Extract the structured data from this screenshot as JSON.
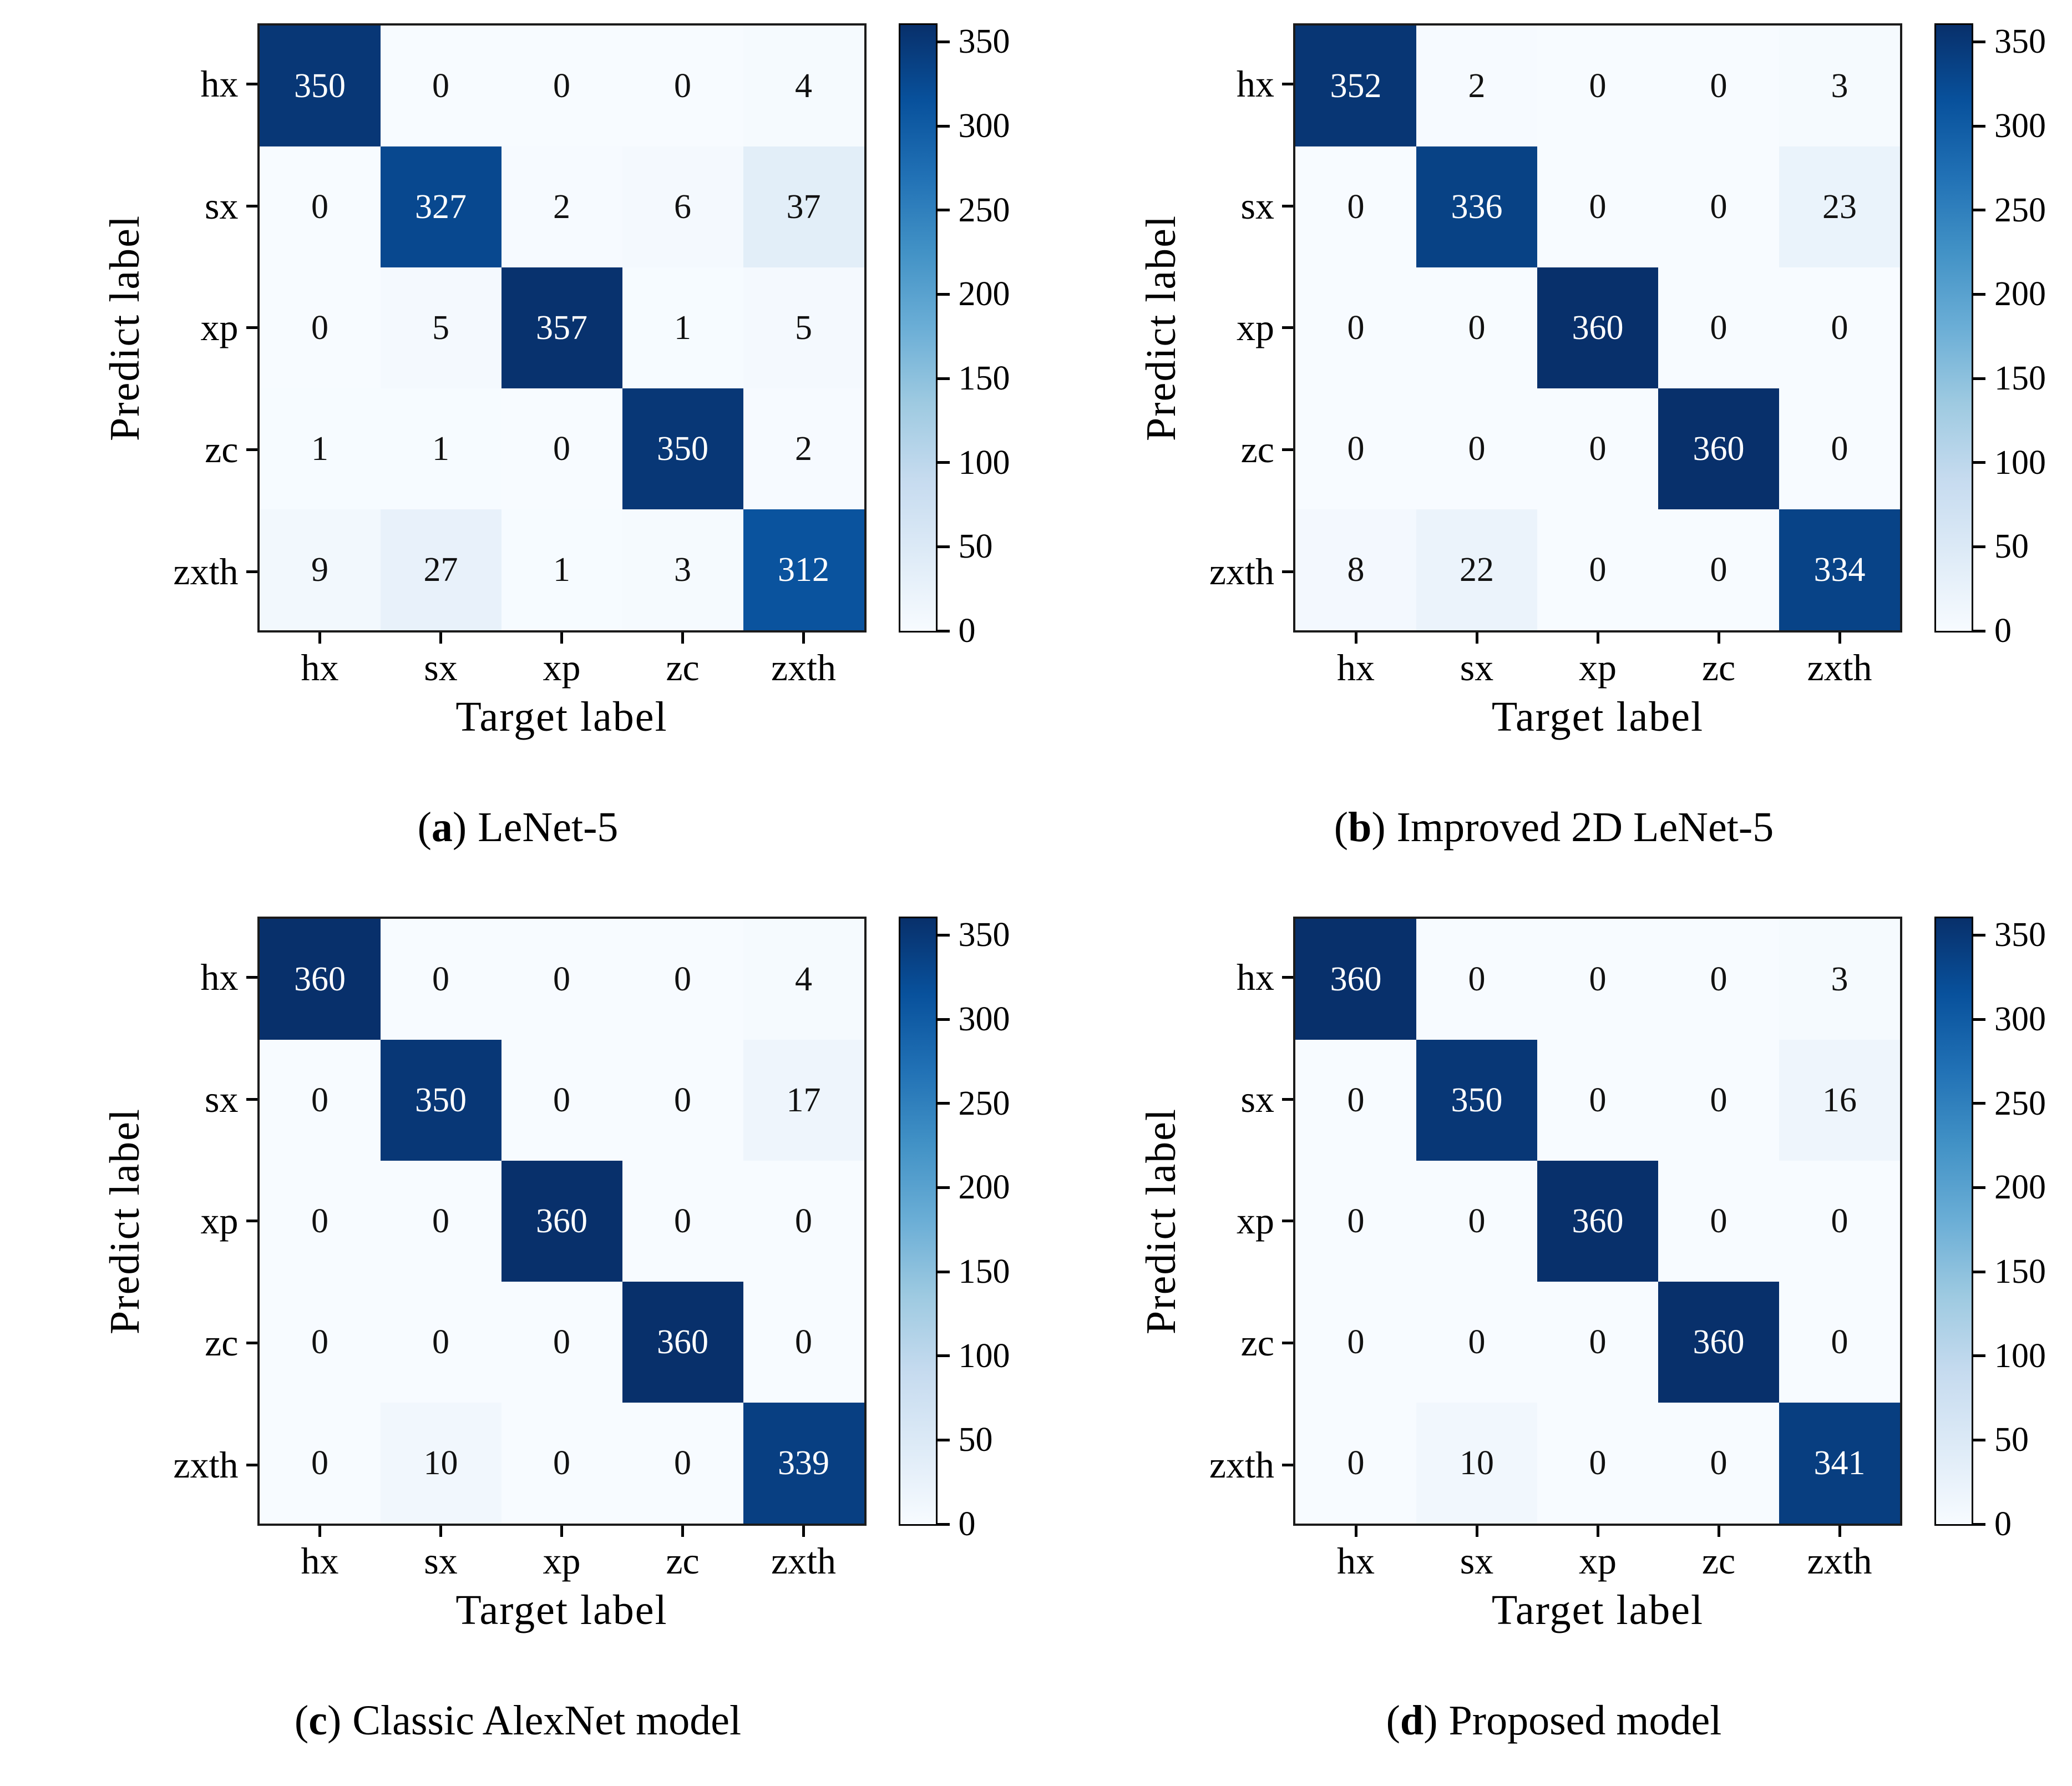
{
  "figure": {
    "background": "#ffffff"
  },
  "colors": {
    "colormap": "Blues",
    "cmap_stops": [
      [
        0.0,
        "#f7fbff"
      ],
      [
        0.125,
        "#deebf7"
      ],
      [
        0.25,
        "#c6dbef"
      ],
      [
        0.375,
        "#9ecae1"
      ],
      [
        0.5,
        "#6baed6"
      ],
      [
        0.625,
        "#4292c6"
      ],
      [
        0.75,
        "#2171b5"
      ],
      [
        0.875,
        "#08519c"
      ],
      [
        1.0,
        "#08306b"
      ]
    ],
    "cell_text_light": "#ffffff",
    "cell_text_dark": "#111111",
    "heatmap_border": "#1b1b1b",
    "axis_color": "#000000"
  },
  "caption_chrome": {
    "open": "(",
    "close": ")"
  },
  "chart_data": [
    {
      "type": "heatmap",
      "title": "(a) LeNet-5",
      "caption": {
        "letter": "a",
        "text": "LeNet-5"
      },
      "xlabel": "Target label",
      "ylabel": "Predict label",
      "x_categories": [
        "hx",
        "sx",
        "xp",
        "zc",
        "zxth"
      ],
      "y_categories": [
        "hx",
        "sx",
        "xp",
        "zc",
        "zxth"
      ],
      "matrix": [
        [
          350,
          0,
          0,
          0,
          4
        ],
        [
          0,
          327,
          2,
          6,
          37
        ],
        [
          0,
          5,
          357,
          1,
          5
        ],
        [
          1,
          1,
          0,
          350,
          2
        ],
        [
          9,
          27,
          1,
          3,
          312
        ]
      ],
      "vmin": 0,
      "vmax": 360,
      "colorbar_ticks": [
        0,
        50,
        100,
        150,
        200,
        250,
        300,
        350
      ],
      "legend_position": "right-colorbar",
      "grid": false
    },
    {
      "type": "heatmap",
      "title": "(b) Improved 2D LeNet-5",
      "caption": {
        "letter": "b",
        "text": "Improved 2D LeNet-5"
      },
      "xlabel": "Target label",
      "ylabel": "Predict label",
      "x_categories": [
        "hx",
        "sx",
        "xp",
        "zc",
        "zxth"
      ],
      "y_categories": [
        "hx",
        "sx",
        "xp",
        "zc",
        "zxth"
      ],
      "matrix": [
        [
          352,
          2,
          0,
          0,
          3
        ],
        [
          0,
          336,
          0,
          0,
          23
        ],
        [
          0,
          0,
          360,
          0,
          0
        ],
        [
          0,
          0,
          0,
          360,
          0
        ],
        [
          8,
          22,
          0,
          0,
          334
        ]
      ],
      "vmin": 0,
      "vmax": 360,
      "colorbar_ticks": [
        0,
        50,
        100,
        150,
        200,
        250,
        300,
        350
      ],
      "legend_position": "right-colorbar",
      "grid": false
    },
    {
      "type": "heatmap",
      "title": "(c) Classic AlexNet model",
      "caption": {
        "letter": "c",
        "text": "Classic AlexNet model"
      },
      "xlabel": "Target label",
      "ylabel": "Predict label",
      "x_categories": [
        "hx",
        "sx",
        "xp",
        "zc",
        "zxth"
      ],
      "y_categories": [
        "hx",
        "sx",
        "xp",
        "zc",
        "zxth"
      ],
      "matrix": [
        [
          360,
          0,
          0,
          0,
          4
        ],
        [
          0,
          350,
          0,
          0,
          17
        ],
        [
          0,
          0,
          360,
          0,
          0
        ],
        [
          0,
          0,
          0,
          360,
          0
        ],
        [
          0,
          10,
          0,
          0,
          339
        ]
      ],
      "vmin": 0,
      "vmax": 360,
      "colorbar_ticks": [
        0,
        50,
        100,
        150,
        200,
        250,
        300,
        350
      ],
      "legend_position": "right-colorbar",
      "grid": false
    },
    {
      "type": "heatmap",
      "title": "(d) Proposed model",
      "caption": {
        "letter": "d",
        "text": "Proposed model"
      },
      "xlabel": "Target label",
      "ylabel": "Predict label",
      "x_categories": [
        "hx",
        "sx",
        "xp",
        "zc",
        "zxth"
      ],
      "y_categories": [
        "hx",
        "sx",
        "xp",
        "zc",
        "zxth"
      ],
      "matrix": [
        [
          360,
          0,
          0,
          0,
          3
        ],
        [
          0,
          350,
          0,
          0,
          16
        ],
        [
          0,
          0,
          360,
          0,
          0
        ],
        [
          0,
          0,
          0,
          360,
          0
        ],
        [
          0,
          10,
          0,
          0,
          341
        ]
      ],
      "vmin": 0,
      "vmax": 360,
      "colorbar_ticks": [
        0,
        50,
        100,
        150,
        200,
        250,
        300,
        350
      ],
      "legend_position": "right-colorbar",
      "grid": false
    }
  ]
}
